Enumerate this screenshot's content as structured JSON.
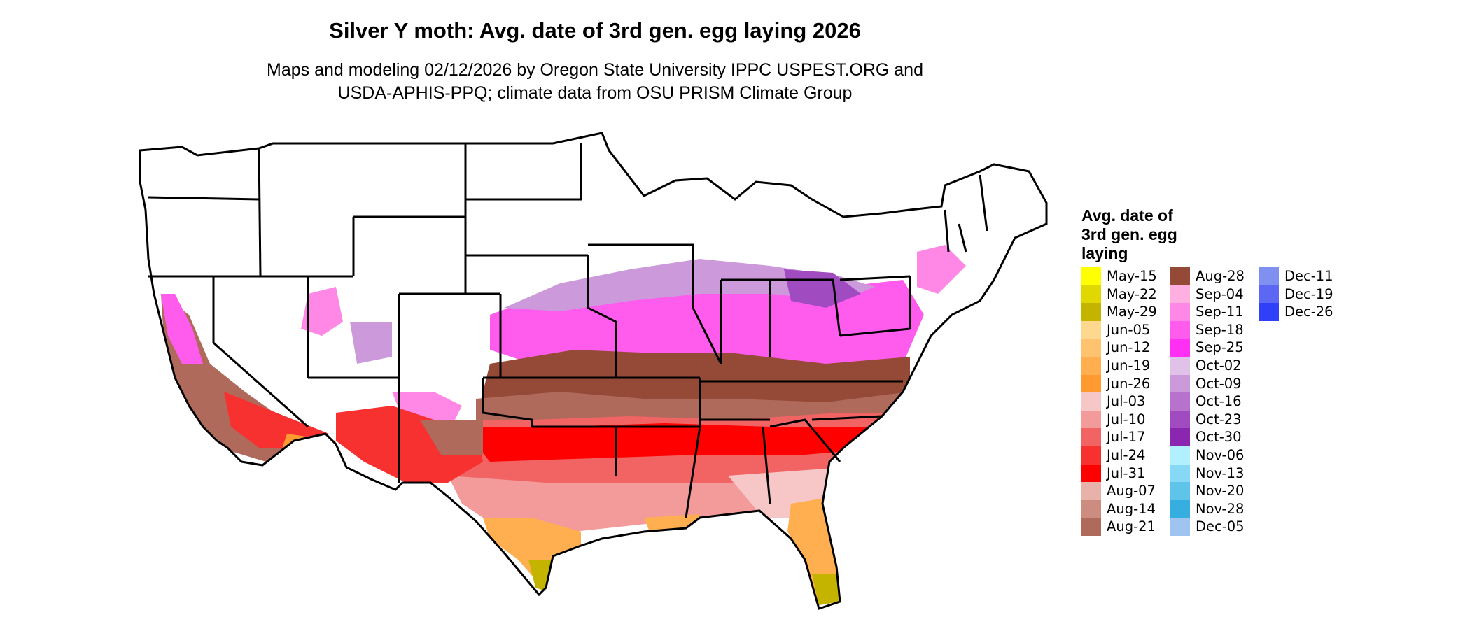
{
  "title": "Silver Y moth: Avg. date of 3rd gen. egg laying 2026",
  "subtitle_lines": [
    "Maps and modeling 02/12/2026 by Oregon State University IPPC USPEST.ORG and",
    "USDA-APHIS-PPQ; climate data from OSU PRISM Climate Group"
  ],
  "legend": {
    "title_lines": [
      "Avg. date of",
      "3rd gen. egg",
      "laying"
    ],
    "columns": [
      [
        {
          "label": "May-15",
          "color": "#ffff00"
        },
        {
          "label": "May-22",
          "color": "#e0d800"
        },
        {
          "label": "May-29",
          "color": "#c4b400"
        },
        {
          "label": "Jun-05",
          "color": "#ffd890"
        },
        {
          "label": "Jun-12",
          "color": "#ffc370"
        },
        {
          "label": "Jun-19",
          "color": "#ffae50"
        },
        {
          "label": "Jun-26",
          "color": "#ff9a30"
        },
        {
          "label": "Jul-03",
          "color": "#f7c7c7"
        },
        {
          "label": "Jul-10",
          "color": "#f39a9a"
        },
        {
          "label": "Jul-17",
          "color": "#f26464"
        },
        {
          "label": "Jul-24",
          "color": "#f73030"
        },
        {
          "label": "Jul-31",
          "color": "#ff0000"
        },
        {
          "label": "Aug-07",
          "color": "#e8b2aa"
        },
        {
          "label": "Aug-14",
          "color": "#cc8c80"
        },
        {
          "label": "Aug-21",
          "color": "#b06a5c"
        }
      ],
      [
        {
          "label": "Aug-28",
          "color": "#944a37"
        },
        {
          "label": "Sep-04",
          "color": "#ffb0e0"
        },
        {
          "label": "Sep-11",
          "color": "#ff88e6"
        },
        {
          "label": "Sep-18",
          "color": "#ff5cee"
        },
        {
          "label": "Sep-25",
          "color": "#ff30f4"
        },
        {
          "label": "Oct-02",
          "color": "#e0c2e8"
        },
        {
          "label": "Oct-09",
          "color": "#cc99db"
        },
        {
          "label": "Oct-16",
          "color": "#b672cd"
        },
        {
          "label": "Oct-23",
          "color": "#a04cc0"
        },
        {
          "label": "Oct-30",
          "color": "#8a26b0"
        },
        {
          "label": "Nov-06",
          "color": "#b0f0ff"
        },
        {
          "label": "Nov-13",
          "color": "#86d8f5"
        },
        {
          "label": "Nov-20",
          "color": "#5ec4ea"
        },
        {
          "label": "Nov-28",
          "color": "#36aee0"
        },
        {
          "label": "Dec-05",
          "color": "#a0c4f0"
        }
      ],
      [
        {
          "label": "Dec-11",
          "color": "#8090f0"
        },
        {
          "label": "Dec-19",
          "color": "#5c68f4"
        },
        {
          "label": "Dec-26",
          "color": "#3040f8"
        }
      ]
    ]
  }
}
